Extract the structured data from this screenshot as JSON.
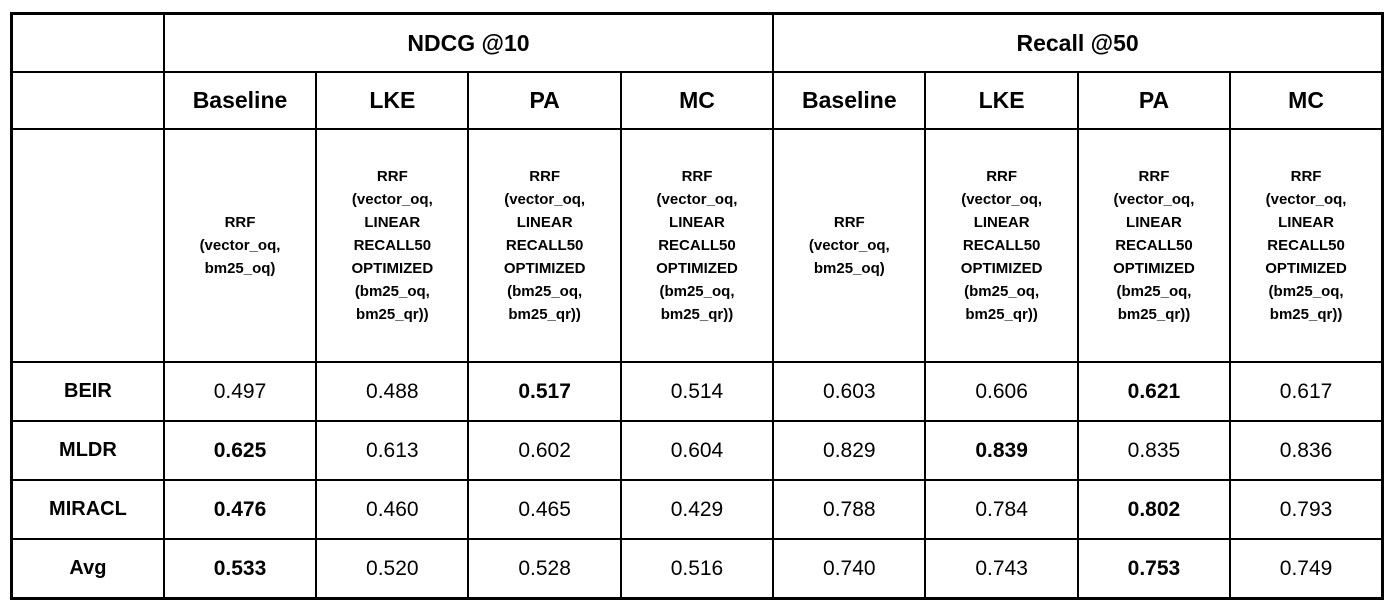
{
  "chart_data": {
    "type": "table",
    "column_groups": [
      {
        "label": "NDCG @10",
        "columns": [
          "Baseline",
          "LKE",
          "PA",
          "MC"
        ]
      },
      {
        "label": "Recall @50",
        "columns": [
          "Baseline",
          "LKE",
          "PA",
          "MC"
        ]
      }
    ],
    "descriptions": {
      "baseline": "RRF\n(vector_oq,\nbm25_oq)",
      "optimized": "RRF\n(vector_oq,\nLINEAR\nRECALL50\nOPTIMIZED\n(bm25_oq,\nbm25_qr))"
    },
    "row_labels": [
      "BEIR",
      "MLDR",
      "MIRACL",
      "Avg"
    ],
    "rows": [
      {
        "label": "BEIR",
        "ndcg": [
          {
            "value": "0.497",
            "bold": false
          },
          {
            "value": "0.488",
            "bold": false
          },
          {
            "value": "0.517",
            "bold": true
          },
          {
            "value": "0.514",
            "bold": false
          }
        ],
        "recall": [
          {
            "value": "0.603",
            "bold": false
          },
          {
            "value": "0.606",
            "bold": false
          },
          {
            "value": "0.621",
            "bold": true
          },
          {
            "value": "0.617",
            "bold": false
          }
        ]
      },
      {
        "label": "MLDR",
        "ndcg": [
          {
            "value": "0.625",
            "bold": true
          },
          {
            "value": "0.613",
            "bold": false
          },
          {
            "value": "0.602",
            "bold": false
          },
          {
            "value": "0.604",
            "bold": false
          }
        ],
        "recall": [
          {
            "value": "0.829",
            "bold": false
          },
          {
            "value": "0.839",
            "bold": true
          },
          {
            "value": "0.835",
            "bold": false
          },
          {
            "value": "0.836",
            "bold": false
          }
        ]
      },
      {
        "label": "MIRACL",
        "ndcg": [
          {
            "value": "0.476",
            "bold": true
          },
          {
            "value": "0.460",
            "bold": false
          },
          {
            "value": "0.465",
            "bold": false
          },
          {
            "value": "0.429",
            "bold": false
          }
        ],
        "recall": [
          {
            "value": "0.788",
            "bold": false
          },
          {
            "value": "0.784",
            "bold": false
          },
          {
            "value": "0.802",
            "bold": true
          },
          {
            "value": "0.793",
            "bold": false
          }
        ]
      },
      {
        "label": "Avg",
        "ndcg": [
          {
            "value": "0.533",
            "bold": true
          },
          {
            "value": "0.520",
            "bold": false
          },
          {
            "value": "0.528",
            "bold": false
          },
          {
            "value": "0.516",
            "bold": false
          }
        ],
        "recall": [
          {
            "value": "0.740",
            "bold": false
          },
          {
            "value": "0.743",
            "bold": false
          },
          {
            "value": "0.753",
            "bold": true
          },
          {
            "value": "0.749",
            "bold": false
          }
        ]
      }
    ],
    "layout_hints": {
      "grid": "on",
      "section_divider": "thick vertical rule between NDCG @10 and Recall @50 sections"
    },
    "colors": {
      "border": "#000000",
      "background": "#ffffff",
      "text": "#000000"
    }
  }
}
